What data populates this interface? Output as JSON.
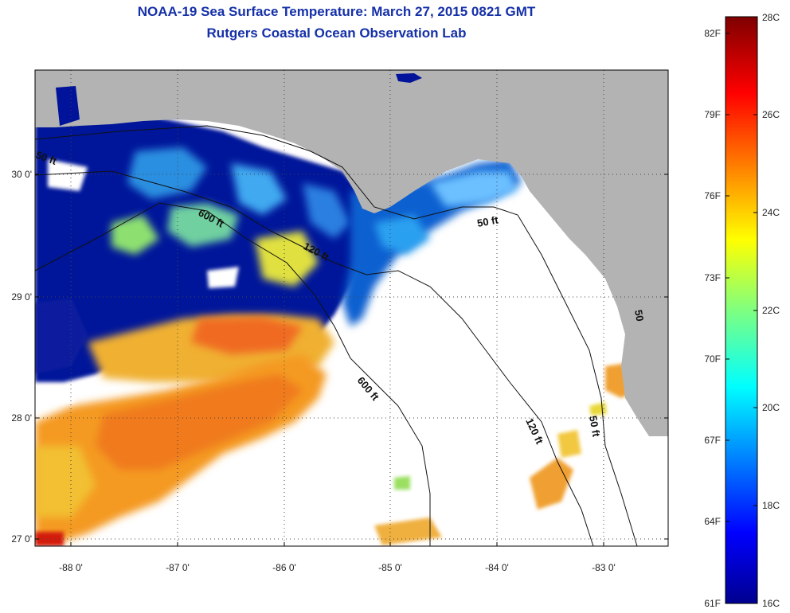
{
  "header": {
    "title": "NOAA-19 Sea Surface Temperature:  March 27, 2015 0821 GMT",
    "subtitle": "Rutgers Coastal Ocean Observation Lab"
  },
  "axes": {
    "lon_labels": [
      "-88 0'",
      "-87 0'",
      "-86 0'",
      "-85 0'",
      "-84 0'",
      "-83 0'"
    ],
    "lat_labels": [
      "30 0'",
      "29 0'",
      "28 0'",
      "27 0'"
    ]
  },
  "contours": {
    "c50_top": "50 ft",
    "c600_top": "600 ft",
    "c120_top": "120 ft",
    "c50_right": "50 ft",
    "c600_right": "600 ft",
    "c120_right": "120 ft",
    "c50_left": "50 ft",
    "c50_edge": "50"
  },
  "colorbar": {
    "celsius": [
      "28C",
      "26C",
      "24C",
      "22C",
      "20C",
      "18C",
      "16C"
    ],
    "fahrenheit": [
      "82F",
      "79F",
      "76F",
      "73F",
      "70F",
      "67F",
      "64F",
      "61F"
    ]
  },
  "colors": {
    "land": "#b3b3b3",
    "title": "#1530a8",
    "cloud": "#ffffff"
  }
}
